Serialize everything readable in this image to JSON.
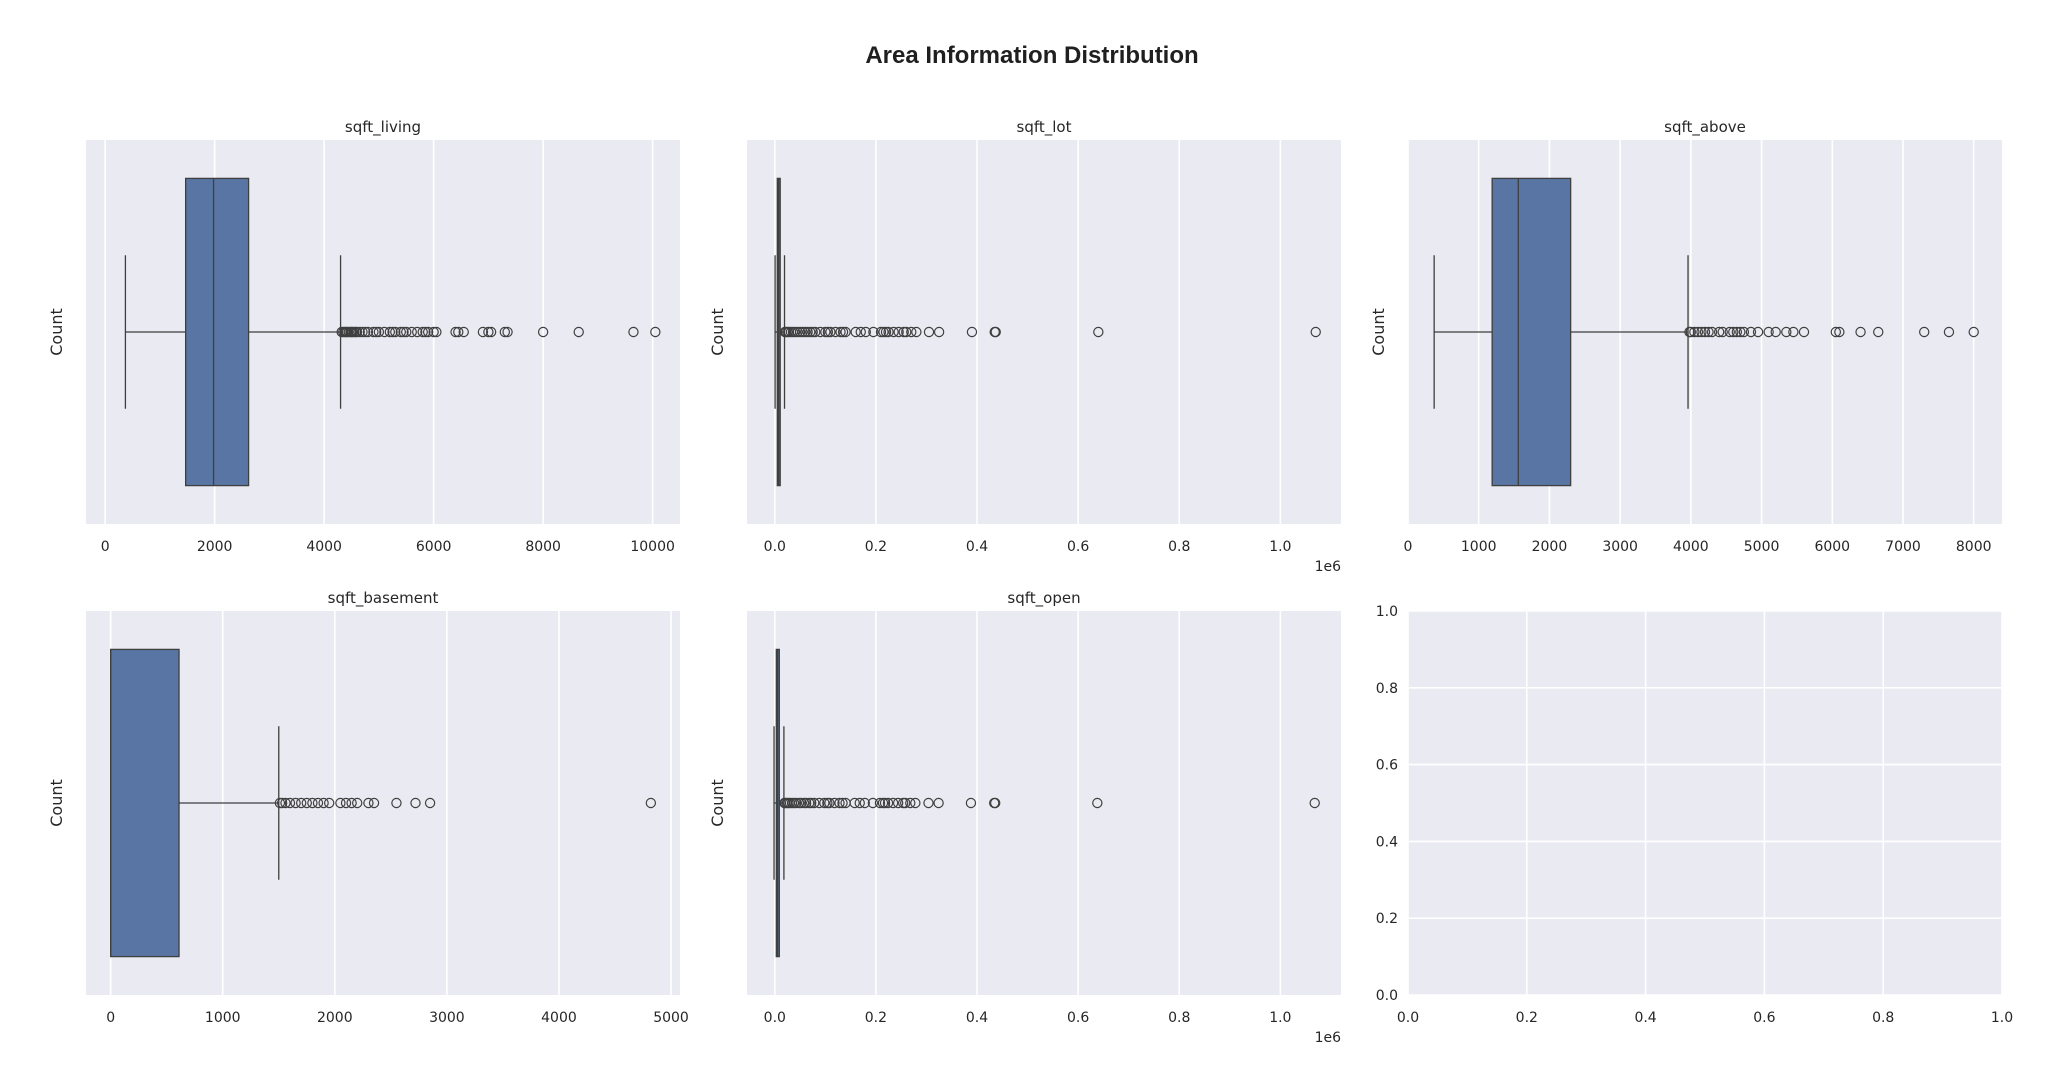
{
  "figure_title": "Area Information Distribution",
  "colors": {
    "panel_bg": "#eaeaf2",
    "grid": "#ffffff",
    "box_fill": "#5975a4",
    "edge": "#3f3f3f"
  },
  "chart_data": [
    {
      "type": "box",
      "orientation": "horizontal",
      "title": "sqft_living",
      "ylabel": "Count",
      "xlabel": "",
      "xlim": [
        -350,
        10500
      ],
      "ticks": [
        0,
        2000,
        4000,
        6000,
        8000,
        10000
      ],
      "tick_labels": [
        "0",
        "2000",
        "4000",
        "6000",
        "8000",
        "10000"
      ],
      "offset_text": "",
      "box": {
        "whisker_low": 370,
        "q1": 1470,
        "median": 1980,
        "q3": 2620,
        "whisker_high": 4300
      },
      "outliers": [
        4320,
        4350,
        4380,
        4400,
        4420,
        4450,
        4480,
        4500,
        4520,
        4550,
        4580,
        4600,
        4650,
        4700,
        4750,
        4800,
        4900,
        4950,
        5000,
        5100,
        5200,
        5250,
        5300,
        5400,
        5450,
        5500,
        5600,
        5700,
        5800,
        5850,
        5900,
        6000,
        6050,
        6400,
        6450,
        6550,
        6900,
        7000,
        7050,
        7300,
        7350,
        8000,
        8650,
        9650,
        10050
      ],
      "grid": true
    },
    {
      "type": "box",
      "orientation": "horizontal",
      "title": "sqft_lot",
      "ylabel": "Count",
      "xlabel": "",
      "xlim": [
        -55000,
        1120000
      ],
      "ticks": [
        0,
        200000,
        400000,
        600000,
        800000,
        1000000
      ],
      "tick_labels": [
        "0.0",
        "0.2",
        "0.4",
        "0.6",
        "0.8",
        "1.0"
      ],
      "offset_text": "1e6",
      "box": {
        "whisker_low": 520,
        "q1": 5000,
        "median": 7600,
        "q3": 10700,
        "whisker_high": 19200
      },
      "outliers": [
        20000,
        22000,
        25000,
        28000,
        32000,
        36000,
        40000,
        45000,
        50000,
        55000,
        60000,
        65000,
        70000,
        75000,
        80000,
        90000,
        100000,
        105000,
        110000,
        120000,
        130000,
        135000,
        140000,
        160000,
        170000,
        180000,
        195000,
        210000,
        215000,
        220000,
        225000,
        235000,
        245000,
        255000,
        260000,
        270000,
        280000,
        305000,
        325000,
        390000,
        435000,
        437000,
        640000,
        1070000
      ],
      "grid": true
    },
    {
      "type": "box",
      "orientation": "horizontal",
      "title": "sqft_above",
      "ylabel": "Count",
      "xlabel": "",
      "xlim": [
        0,
        8400
      ],
      "ticks": [
        0,
        1000,
        2000,
        3000,
        4000,
        5000,
        6000,
        7000,
        8000
      ],
      "tick_labels": [
        "0",
        "1000",
        "2000",
        "3000",
        "4000",
        "5000",
        "6000",
        "7000",
        "8000"
      ],
      "offset_text": "",
      "box": {
        "whisker_low": 370,
        "q1": 1190,
        "median": 1560,
        "q3": 2300,
        "whisker_high": 3960
      },
      "outliers": [
        3980,
        4000,
        4050,
        4100,
        4150,
        4200,
        4250,
        4300,
        4400,
        4450,
        4550,
        4600,
        4650,
        4700,
        4750,
        4850,
        4950,
        5100,
        5200,
        5350,
        5450,
        5600,
        6050,
        6100,
        6400,
        6650,
        7300,
        7650,
        8000
      ],
      "grid": true
    },
    {
      "type": "box",
      "orientation": "horizontal",
      "title": "sqft_basement",
      "ylabel": "Count",
      "xlabel": "",
      "xlim": [
        -220,
        5080
      ],
      "ticks": [
        0,
        1000,
        2000,
        3000,
        4000,
        5000
      ],
      "tick_labels": [
        "0",
        "1000",
        "2000",
        "3000",
        "4000",
        "5000"
      ],
      "offset_text": "",
      "box": {
        "whisker_low": 0,
        "q1": 0,
        "median": 0,
        "q3": 610,
        "whisker_high": 1500
      },
      "outliers": [
        1510,
        1530,
        1560,
        1600,
        1650,
        1700,
        1750,
        1800,
        1850,
        1900,
        1950,
        2050,
        2100,
        2150,
        2200,
        2300,
        2350,
        2550,
        2720,
        2850,
        4820
      ],
      "grid": true
    },
    {
      "type": "box",
      "orientation": "horizontal",
      "title": "sqft_open",
      "ylabel": "Count",
      "xlabel": "",
      "xlim": [
        -55000,
        1120000
      ],
      "ticks": [
        0,
        200000,
        400000,
        600000,
        800000,
        1000000
      ],
      "tick_labels": [
        "0.0",
        "0.2",
        "0.4",
        "0.6",
        "0.8",
        "1.0"
      ],
      "offset_text": "1e6",
      "box": {
        "whisker_low": -1500,
        "q1": 3000,
        "median": 5500,
        "q3": 8900,
        "whisker_high": 18000
      },
      "outliers": [
        19000,
        21000,
        24000,
        27000,
        30000,
        34000,
        38000,
        42000,
        48000,
        52000,
        58000,
        62000,
        68000,
        72000,
        78000,
        88000,
        98000,
        104000,
        108000,
        118000,
        128000,
        134000,
        140000,
        158000,
        168000,
        178000,
        194000,
        208000,
        214000,
        218000,
        224000,
        234000,
        244000,
        254000,
        258000,
        268000,
        278000,
        304000,
        324000,
        388000,
        434000,
        436000,
        638000,
        1068000
      ],
      "grid": true
    },
    {
      "type": "empty",
      "title": "",
      "ylabel": "",
      "xlabel": "",
      "xlim": [
        0,
        1
      ],
      "ylim": [
        0,
        1
      ],
      "ticks": [
        0,
        0.2,
        0.4,
        0.6,
        0.8,
        1.0
      ],
      "tick_labels": [
        "0.0",
        "0.2",
        "0.4",
        "0.6",
        "0.8",
        "1.0"
      ],
      "y_ticks": [
        0,
        0.2,
        0.4,
        0.6,
        0.8,
        1.0
      ],
      "y_tick_labels": [
        "0.0",
        "0.2",
        "0.4",
        "0.6",
        "0.8",
        "1.0"
      ],
      "offset_text": "",
      "grid": true
    }
  ]
}
